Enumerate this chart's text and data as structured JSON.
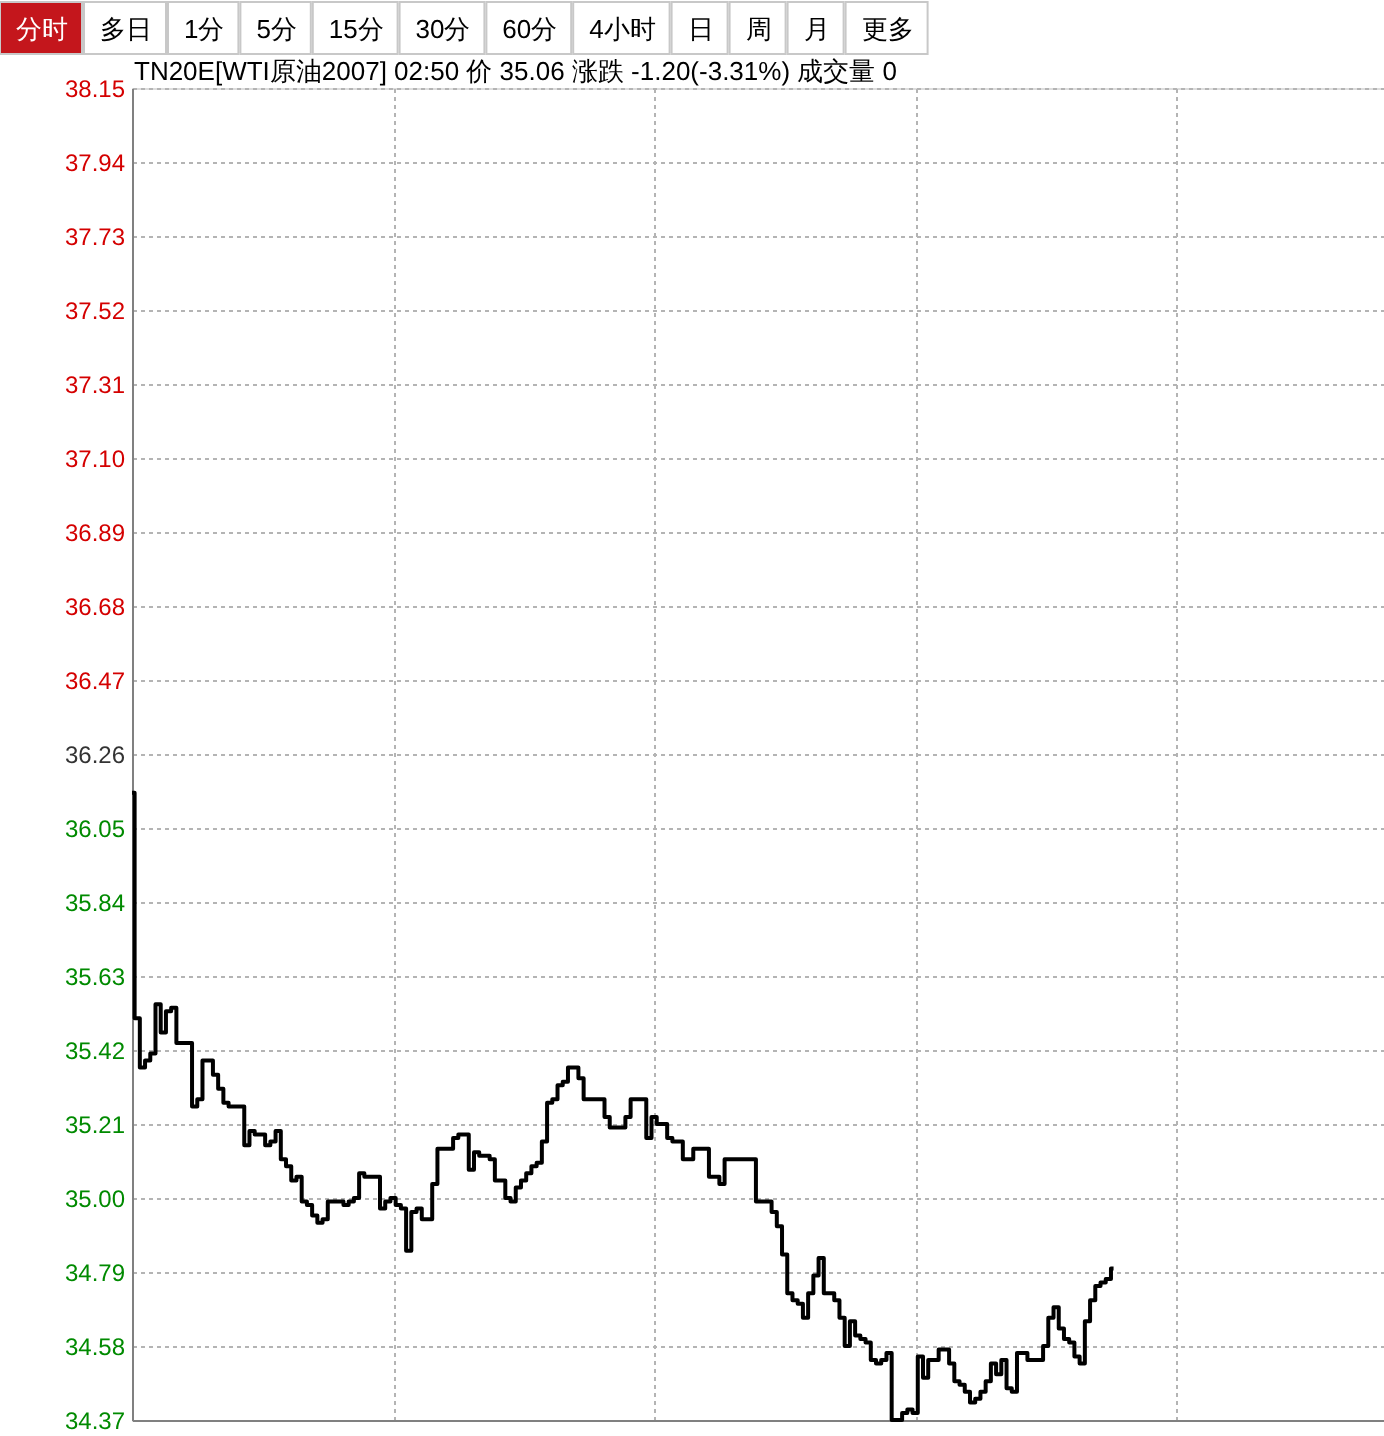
{
  "chart_data": {
    "type": "step",
    "title": "TN20E[WTI原油2007] 02:50 价 35.06 涨跌 -1.20(-3.31%) 成交量 0",
    "annotations": [
      "分时",
      "多日",
      "1分",
      "5分",
      "15分",
      "30分",
      "60分",
      "4小时",
      "日",
      "周",
      "月",
      "更多"
    ],
    "categories": [
      null,
      null,
      null,
      null,
      null,
      null,
      null,
      null,
      null,
      null,
      null,
      null,
      null,
      null,
      null,
      null,
      null,
      null,
      null,
      null,
      null,
      null,
      null,
      null,
      null,
      null,
      null,
      null,
      null,
      null,
      null,
      null,
      null,
      null,
      null,
      null,
      null,
      null,
      null,
      null,
      null,
      null,
      null,
      null,
      null,
      null,
      null,
      null,
      null,
      null,
      null,
      null,
      null,
      null,
      null,
      null,
      null,
      null,
      null,
      null,
      null,
      null,
      null,
      null,
      null,
      null,
      null,
      null,
      null,
      null,
      null,
      null,
      null,
      null,
      null,
      null,
      null,
      null,
      null,
      null,
      null,
      null,
      null,
      null,
      null,
      null,
      null,
      null,
      null,
      null,
      null,
      null,
      null,
      null,
      null,
      null,
      null,
      null,
      null,
      null,
      null,
      null,
      null,
      null,
      null,
      null,
      null,
      null,
      null,
      null,
      null,
      null,
      null,
      null,
      null,
      null,
      null,
      null,
      null,
      null,
      null,
      null,
      null,
      null,
      null,
      null,
      null,
      null,
      null,
      null,
      null,
      null,
      null,
      null,
      null,
      null,
      null,
      null,
      null,
      null,
      null,
      null,
      null,
      null,
      null,
      null,
      null,
      null,
      null,
      null,
      null,
      null,
      null,
      null,
      null,
      null,
      null,
      null,
      null,
      null,
      null,
      null,
      null,
      null,
      null,
      null,
      null,
      null,
      null,
      null,
      null,
      null,
      null,
      null,
      null,
      null,
      null,
      null,
      null,
      null,
      null,
      null,
      null,
      null,
      null,
      null,
      null,
      null,
      null
    ],
    "series": [
      {
        "color": "#000000",
        "values": [
          36.15,
          35.51,
          35.37,
          35.39,
          35.41,
          35.55,
          35.47,
          35.53,
          35.54,
          35.44,
          35.44,
          35.44,
          35.26,
          35.28,
          35.39,
          35.39,
          35.35,
          35.31,
          35.27,
          35.26,
          35.26,
          35.26,
          35.15,
          35.19,
          35.18,
          35.18,
          35.15,
          35.16,
          35.19,
          35.11,
          35.09,
          35.05,
          35.06,
          34.99,
          34.98,
          34.95,
          34.93,
          34.94,
          34.99,
          34.99,
          34.99,
          34.98,
          34.99,
          35.0,
          35.07,
          35.06,
          35.06,
          35.06,
          34.97,
          34.99,
          35.0,
          34.98,
          34.97,
          34.85,
          34.96,
          34.97,
          34.94,
          34.94,
          35.04,
          35.14,
          35.14,
          35.14,
          35.17,
          35.18,
          35.18,
          35.08,
          35.13,
          35.12,
          35.12,
          35.11,
          35.05,
          35.05,
          35.0,
          34.99,
          35.03,
          35.05,
          35.07,
          35.09,
          35.1,
          35.16,
          35.27,
          35.28,
          35.32,
          35.33,
          35.37,
          35.37,
          35.34,
          35.28,
          35.28,
          35.28,
          35.28,
          35.23,
          35.2,
          35.2,
          35.2,
          35.23,
          35.28,
          35.28,
          35.28,
          35.17,
          35.23,
          35.21,
          35.21,
          35.17,
          35.16,
          35.16,
          35.11,
          35.11,
          35.14,
          35.14,
          35.14,
          35.06,
          35.06,
          35.04,
          35.11,
          35.11,
          35.11,
          35.11,
          35.11,
          35.11,
          34.99,
          34.99,
          34.99,
          34.96,
          34.92,
          34.84,
          34.73,
          34.71,
          34.7,
          34.66,
          34.73,
          34.78,
          34.83,
          34.73,
          34.73,
          34.71,
          34.66,
          34.58,
          34.65,
          34.61,
          34.6,
          34.59,
          34.54,
          34.53,
          34.54,
          34.56,
          34.37,
          34.37,
          34.39,
          34.4,
          34.39,
          34.55,
          34.49,
          34.54,
          34.54,
          34.57,
          34.57,
          34.53,
          34.48,
          34.47,
          34.45,
          34.42,
          34.43,
          34.45,
          34.48,
          34.53,
          34.5,
          34.54,
          34.46,
          34.45,
          34.56,
          34.56,
          34.54,
          34.54,
          34.54,
          34.58,
          34.66,
          34.69,
          34.63,
          34.6,
          34.59,
          34.55,
          34.53,
          34.65,
          34.71,
          34.75,
          34.76,
          34.77,
          34.8
        ]
      }
    ],
    "ylim": [
      34.37,
      38.15
    ],
    "yticks": [
      34.37,
      34.58,
      34.79,
      {
        "value": 35,
        "label": "35.00"
      },
      35.21,
      35.42,
      35.63,
      35.84,
      36.05,
      36.26,
      36.47,
      36.68,
      36.89,
      {
        "value": 37.1,
        "label": "37.10"
      },
      37.31,
      37.52,
      37.73,
      37.94,
      38.15
    ],
    "grid": true,
    "tick_labels": "y",
    "line_style": "solid"
  }
}
